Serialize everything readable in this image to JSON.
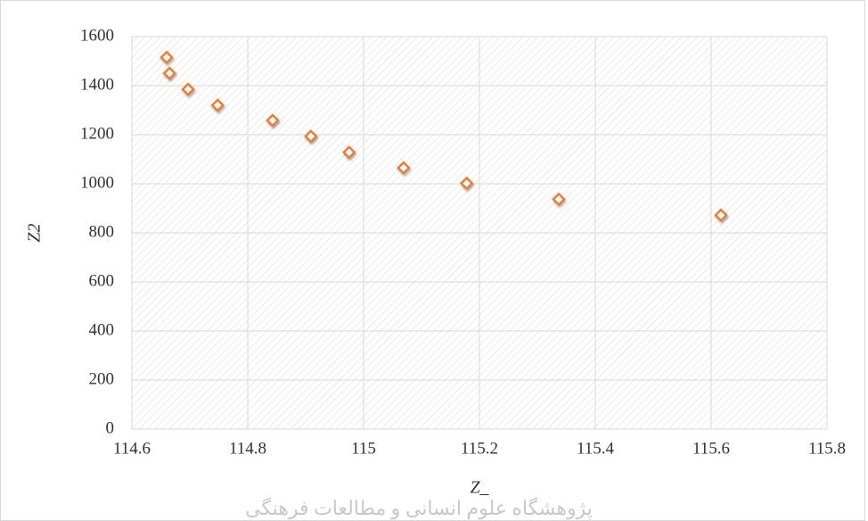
{
  "chart_data": {
    "type": "scatter",
    "x_label": "Z_",
    "y_label": "Z2",
    "watermark": "پژوهشگاه علوم انسانی و مطالعات فرهنگی",
    "series": [
      {
        "color": "#ed7d31",
        "x": [
          114.66,
          114.665,
          114.697,
          114.748,
          114.843,
          114.909,
          114.975,
          115.069,
          115.178,
          115.337,
          115.617
        ],
        "values": [
          1515,
          1450,
          1385,
          1320,
          1258,
          1193,
          1128,
          1065,
          1002,
          937,
          872
        ]
      }
    ],
    "xlim": [
      114.6,
      115.8
    ],
    "xticks": [
      114.6,
      114.8,
      115,
      115.2,
      115.4,
      115.6,
      115.8
    ],
    "ylim": [
      0,
      1600
    ],
    "yticks": [
      0,
      200,
      400,
      600,
      800,
      1000,
      1200,
      1400,
      1600
    ],
    "grid": true
  }
}
